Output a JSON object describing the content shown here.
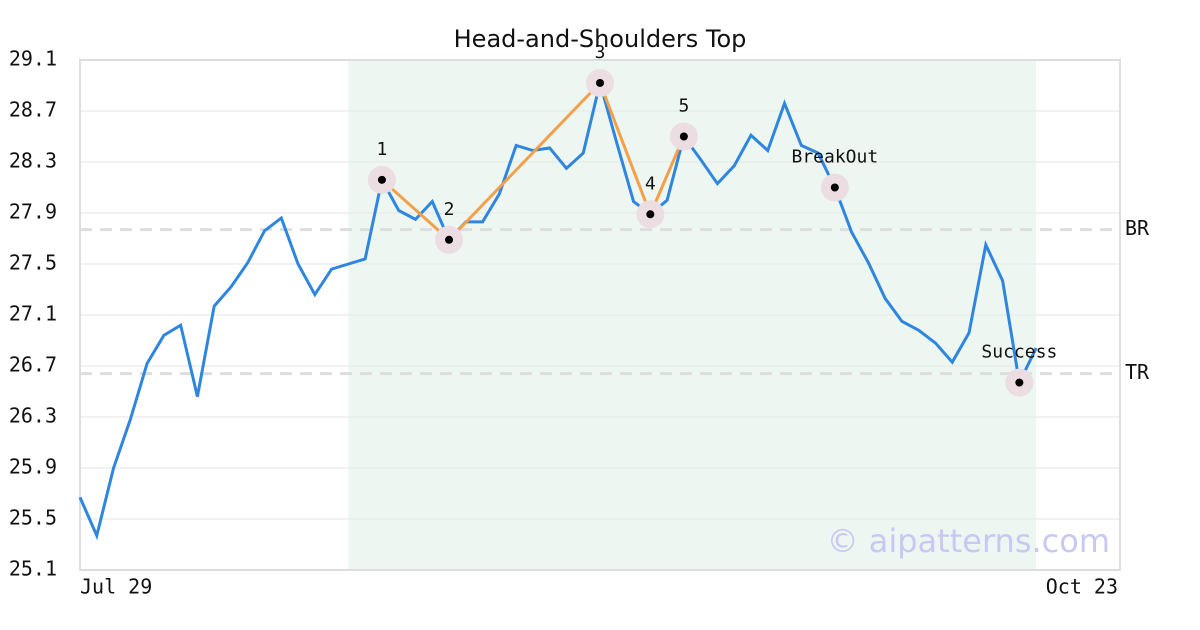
{
  "chart_data": {
    "type": "line",
    "title": "Head-and-Shoulders Top",
    "categories": [
      "Jul 29",
      null,
      null,
      null,
      null,
      null,
      null,
      null,
      null,
      null,
      null,
      null,
      null,
      null,
      null,
      null,
      null,
      null,
      null,
      null,
      null,
      null,
      null,
      null,
      null,
      null,
      null,
      null,
      null,
      null,
      null,
      null,
      null,
      null,
      null,
      null,
      null,
      null,
      null,
      null,
      null,
      null,
      null,
      null,
      null,
      null,
      null,
      null,
      null,
      null,
      null,
      null,
      null,
      null,
      null,
      null,
      null,
      null,
      null,
      null,
      null,
      null,
      "Oct 23"
    ],
    "values": [
      25.67,
      25.37,
      25.9,
      26.28,
      26.72,
      26.94,
      27.02,
      26.46,
      27.17,
      27.32,
      27.51,
      27.76,
      27.86,
      27.5,
      27.26,
      27.46,
      27.5,
      27.54,
      28.16,
      27.92,
      27.85,
      27.99,
      27.69,
      27.83,
      27.83,
      28.05,
      28.43,
      28.39,
      28.41,
      28.25,
      28.37,
      28.92,
      28.45,
      27.99,
      27.89,
      28.0,
      28.5,
      28.32,
      28.13,
      28.27,
      28.51,
      28.39,
      28.76,
      28.43,
      28.37,
      28.1,
      27.75,
      27.51,
      27.23,
      27.05,
      26.98,
      26.88,
      26.73,
      26.96,
      27.65,
      27.37,
      26.57,
      26.84,
      null,
      null,
      null,
      null,
      null
    ],
    "color": "#2e86de",
    "ylim": [
      25.1,
      29.1
    ],
    "yticks": [
      25.1,
      25.5,
      25.9,
      26.3,
      26.7,
      27.1,
      27.5,
      27.9,
      28.3,
      28.7,
      29.1
    ],
    "grid": true,
    "highlight": {
      "from": 16,
      "to": 57,
      "color": "#eef6f2"
    },
    "pattern": {
      "color": "#f4a04a",
      "points": [
        {
          "label": "1",
          "x": 18,
          "value": 28.16
        },
        {
          "label": "2",
          "x": 22,
          "value": 27.69
        },
        {
          "label": "3",
          "x": 31,
          "value": 28.92
        },
        {
          "label": "4",
          "x": 34,
          "value": 27.89
        },
        {
          "label": "5",
          "x": 36,
          "value": 28.5
        }
      ]
    },
    "markers": [
      {
        "label": "BreakOut",
        "x": 45,
        "value": 28.1
      },
      {
        "label": "Success",
        "x": 56,
        "value": 26.57
      }
    ],
    "levels": [
      {
        "label": "BR",
        "value": 27.77
      },
      {
        "label": "TR",
        "value": 26.64
      }
    ],
    "watermark": "© aipatterns.com"
  }
}
